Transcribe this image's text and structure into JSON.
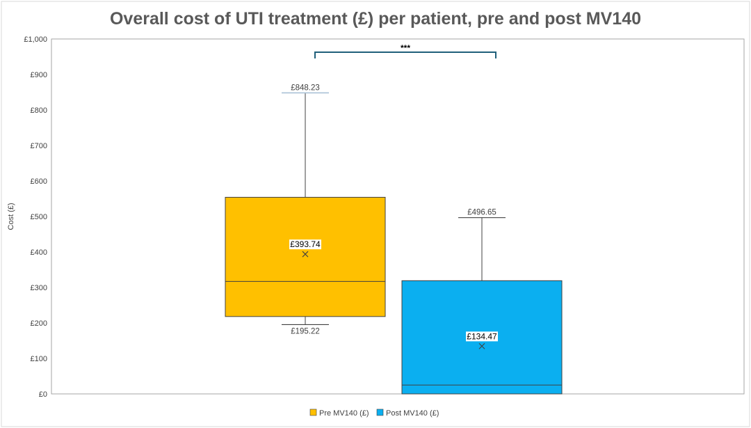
{
  "chart_data": {
    "type": "box",
    "title": "Overall cost of UTI treatment (£) per patient, pre and post MV140",
    "ylabel": "Cost (£)",
    "xlabel": "",
    "ylim": [
      0,
      1000
    ],
    "y_ticks": [
      "£0",
      "£100",
      "£200",
      "£300",
      "£400",
      "£500",
      "£600",
      "£700",
      "£800",
      "£900",
      "£1,000"
    ],
    "y_tick_values": [
      0,
      100,
      200,
      300,
      400,
      500,
      600,
      700,
      800,
      900,
      1000
    ],
    "grid": false,
    "legend_position": "bottom",
    "significance": "***",
    "series": [
      {
        "name": "Pre MV140 (£)",
        "color": "#FFC000",
        "min": 195.22,
        "q1": 218,
        "median": 317,
        "q3": 554,
        "max": 848.23,
        "mean": 393.74,
        "labels": {
          "max": "£848.23",
          "min": "£195.22",
          "mean": "£393.74"
        }
      },
      {
        "name": "Post MV140 (£)",
        "color": "#0BAFF0",
        "min": 0,
        "q1": 0,
        "median": 25,
        "q3": 319,
        "max": 496.65,
        "mean": 134.47,
        "labels": {
          "max": "£496.65",
          "mean": "£134.47"
        }
      }
    ]
  }
}
